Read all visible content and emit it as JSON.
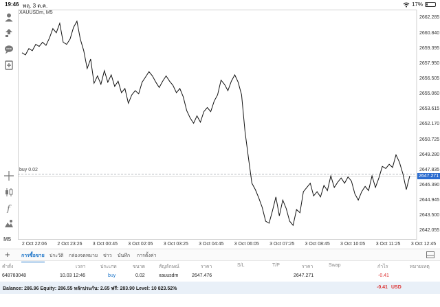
{
  "status_bar": {
    "time": "19:46",
    "date": "พฤ. 3 ต.ค.",
    "battery": "17%"
  },
  "chart": {
    "symbol": "XAUUSDm, M5",
    "position_label": "buy 0.02",
    "current_price_tag": "2647.271",
    "y_ticks": [
      "2662.285",
      "2660.840",
      "2659.395",
      "2657.950",
      "2656.505",
      "2655.060",
      "2653.615",
      "2652.170",
      "2650.725",
      "2649.280",
      "2647.835",
      "2646.390",
      "2644.945",
      "2643.500",
      "2642.055"
    ],
    "x_ticks": [
      "2 Oct 22:06",
      "2 Oct 23:26",
      "3 Oct 00:45",
      "3 Oct 02:05",
      "3 Oct 03:25",
      "3 Oct 04:45",
      "3 Oct 06:05",
      "3 Oct 07:25",
      "3 Oct 08:45",
      "3 Oct 10:05",
      "3 Oct 11:25",
      "3 Oct 12:45"
    ]
  },
  "chart_data": {
    "type": "line",
    "ylim": [
      2641.3,
      2663.1
    ],
    "entry_price": 2647.476,
    "current_price": 2647.271,
    "values": [
      2659.0,
      2658.8,
      2659.4,
      2659.2,
      2659.8,
      2659.6,
      2660.0,
      2659.7,
      2660.4,
      2661.3,
      2660.9,
      2661.8,
      2660.0,
      2659.8,
      2660.3,
      2661.4,
      2662.0,
      2660.3,
      2659.2,
      2657.5,
      2658.4,
      2656.1,
      2656.8,
      2656.0,
      2657.3,
      2656.2,
      2656.9,
      2655.8,
      2656.3,
      2655.2,
      2655.6,
      2654.2,
      2655.0,
      2655.4,
      2655.1,
      2656.2,
      2656.7,
      2657.2,
      2656.8,
      2656.2,
      2655.7,
      2656.3,
      2656.8,
      2656.3,
      2655.9,
      2655.2,
      2655.6,
      2654.8,
      2653.5,
      2652.8,
      2652.3,
      2653.0,
      2652.4,
      2653.4,
      2653.8,
      2653.4,
      2654.4,
      2655.0,
      2656.4,
      2656.0,
      2655.4,
      2656.3,
      2656.9,
      2656.2,
      2655.0,
      2651.5,
      2649.0,
      2646.6,
      2646.0,
      2645.2,
      2644.3,
      2643.0,
      2642.8,
      2644.0,
      2645.3,
      2643.5,
      2645.0,
      2644.2,
      2643.0,
      2642.6,
      2644.1,
      2643.8,
      2645.8,
      2646.2,
      2646.6,
      2645.4,
      2645.8,
      2645.3,
      2646.4,
      2645.9,
      2647.3,
      2646.2,
      2646.7,
      2647.1,
      2646.6,
      2647.2,
      2646.8,
      2645.6,
      2645.0,
      2645.8,
      2646.3,
      2645.9,
      2647.3,
      2646.2,
      2647.1,
      2648.2,
      2648.0,
      2648.4,
      2648.1,
      2649.3,
      2648.6,
      2647.5,
      2646.0,
      2647.3
    ]
  },
  "terminal": {
    "tabs": [
      "การซื้อขาย",
      "ประวัติ",
      "กล่องจดหมาย",
      "ข่าว",
      "บันทึก",
      "การตั้งค่า"
    ],
    "columns": [
      "คำสั่ง",
      "เวลา",
      "ประเภท",
      "ขนาด",
      "สัญลักษณ์",
      "ราคา",
      "S/L",
      "T/P",
      "ราคา",
      "Swap",
      "กำไร",
      "หมายเหตุ"
    ],
    "row": {
      "order": "648783048",
      "time": "10.03 12:46",
      "type": "buy",
      "volume": "0.02",
      "symbol": "xauusdm",
      "open_price": "2647.476",
      "current_price": "2647.271",
      "profit": "-0.41"
    },
    "balance_text": "Balance: 286.96 Equity: 286.55 หลักประกัน: 2.65 ฟรี: 283.90 Level: 10 823.52%",
    "total_profit": "-0.41",
    "currency": "USD"
  },
  "colors": {
    "accent": "#1a73c8",
    "negative": "#dd3333",
    "price_tag": "#2b6ccf"
  }
}
